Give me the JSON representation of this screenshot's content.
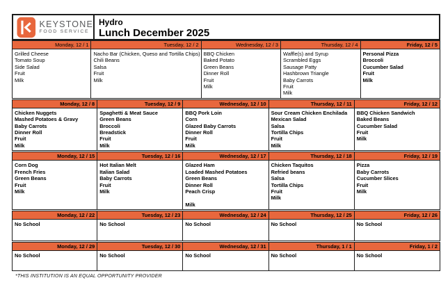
{
  "header": {
    "brand_name": "KEYSTONE",
    "brand_sub": "FOOD SERVICE",
    "site_name": "Hydro",
    "menu_title": "Lunch December 2025"
  },
  "colors": {
    "accent_orange": "#e8673d",
    "border_black": "#1c1c1c",
    "brand_gray": "#58595b"
  },
  "footer": {
    "note": "*THIS INSTITUTION IS AN EQUAL OPPORTUNITY PROVIDER"
  },
  "weeks": [
    {
      "days": [
        {
          "label": "Monday, 12 / 1",
          "bold": false,
          "items": [
            "Grilled Cheese",
            "Tomato Soup",
            "Side Salad",
            "Fruit",
            "Milk"
          ]
        },
        {
          "label": "Tuesday, 12 / 2",
          "bold": false,
          "items": [
            "Nacho Bar (Chicken, Queso and Tortilla Chips)",
            "Chili Beans",
            "Salsa",
            "Fruit",
            "Milk"
          ]
        },
        {
          "label": "Wednesday, 12 / 3",
          "bold": false,
          "items": [
            "BBQ Chicken",
            "Baked Potato",
            "Green Beans",
            "Dinner Roll",
            "Fruit",
            "Milk"
          ]
        },
        {
          "label": "Thursday, 12 / 4",
          "bold": false,
          "items": [
            "Waffle(s) and Syrup",
            "Scrambled Eggs",
            "Sausage Patty",
            "Hashbrown Triangle",
            "Baby Carrots",
            "Fruit",
            "Milk"
          ]
        },
        {
          "label": "Friday, 12 / 5",
          "bold": true,
          "items": [
            "Personal Pizza",
            "Broccoli",
            "Cucumber Salad",
            "Fruit",
            "Milk"
          ]
        }
      ]
    },
    {
      "days": [
        {
          "label": "Monday, 12 / 8",
          "bold": true,
          "items": [
            "Chicken Nuggets",
            "Mashed Potatoes & Gravy",
            "Baby Carrots",
            "Dinner Roll",
            "Fruit",
            "Milk"
          ]
        },
        {
          "label": "Tuesday, 12 / 9",
          "bold": true,
          "items": [
            "Spaghetti & Meat Sauce",
            "Green Beans",
            "Broccoli",
            "Breadstick",
            "Fruit",
            "Milk"
          ]
        },
        {
          "label": "Wednesday, 12 / 10",
          "bold": true,
          "items": [
            "BBQ Pork Loin",
            "Corn",
            "Glazed Baby Carrots",
            "Dinner Roll",
            "Fruit",
            "Milk"
          ]
        },
        {
          "label": "Thursday, 12 / 11",
          "bold": true,
          "items": [
            "Sour Cream Chicken Enchilada",
            "Mexican Salad",
            "Salsa",
            "Tortilla Chips",
            "Fruit",
            "Milk"
          ]
        },
        {
          "label": "Friday, 12 / 12",
          "bold": true,
          "items": [
            "BBQ Chicken Sandwich",
            "Baked Beans",
            "Cucumber Salad",
            "Fruit",
            "Milk"
          ]
        }
      ]
    },
    {
      "days": [
        {
          "label": "Monday, 12 / 15",
          "bold": true,
          "items": [
            "Corn Dog",
            "French Fries",
            "Green Beans",
            "Fruit",
            "Milk"
          ]
        },
        {
          "label": "Tuesday, 12 / 16",
          "bold": true,
          "items": [
            "Hot Italian Melt",
            "Italian Salad",
            "Baby Carrots",
            "Fruit",
            "Milk"
          ]
        },
        {
          "label": "Wednesday, 12 / 17",
          "bold": true,
          "items": [
            "Glazed Ham",
            "Loaded Mashed Potatoes",
            "Green Beans",
            "Dinner Roll",
            "Peach Crisp",
            "",
            "Milk"
          ]
        },
        {
          "label": "Thursday, 12 / 18",
          "bold": true,
          "items": [
            "Chicken Taquitos",
            "Refried beans",
            "Salsa",
            "Tortilla Chips",
            "Fruit",
            "Milk"
          ]
        },
        {
          "label": "Friday, 12 / 19",
          "bold": true,
          "items": [
            "Pizza",
            "Baby Carrots",
            "Cucumber Slices",
            "Fruit",
            "Milk"
          ]
        }
      ]
    },
    {
      "days": [
        {
          "label": "Monday, 12 / 22",
          "bold": true,
          "items": [
            "No School"
          ]
        },
        {
          "label": "Tuesday, 12 / 23",
          "bold": true,
          "items": [
            "No School"
          ]
        },
        {
          "label": "Wednesday, 12 / 24",
          "bold": true,
          "items": [
            "No School"
          ]
        },
        {
          "label": "Thursday, 12 / 25",
          "bold": true,
          "items": [
            "No School"
          ]
        },
        {
          "label": "Friday, 12 / 26",
          "bold": true,
          "items": [
            "No School"
          ]
        }
      ]
    },
    {
      "days": [
        {
          "label": "Monday, 12 / 29",
          "bold": true,
          "items": [
            "No School"
          ]
        },
        {
          "label": "Tuesday, 12 / 30",
          "bold": true,
          "items": [
            "No School"
          ]
        },
        {
          "label": "Wednesday, 12 / 31",
          "bold": true,
          "items": [
            "No School"
          ]
        },
        {
          "label": "Thursday, 1 / 1",
          "bold": true,
          "items": [
            "No School"
          ]
        },
        {
          "label": "Friday, 1 / 2",
          "bold": true,
          "items": [
            "No School"
          ]
        }
      ]
    }
  ]
}
